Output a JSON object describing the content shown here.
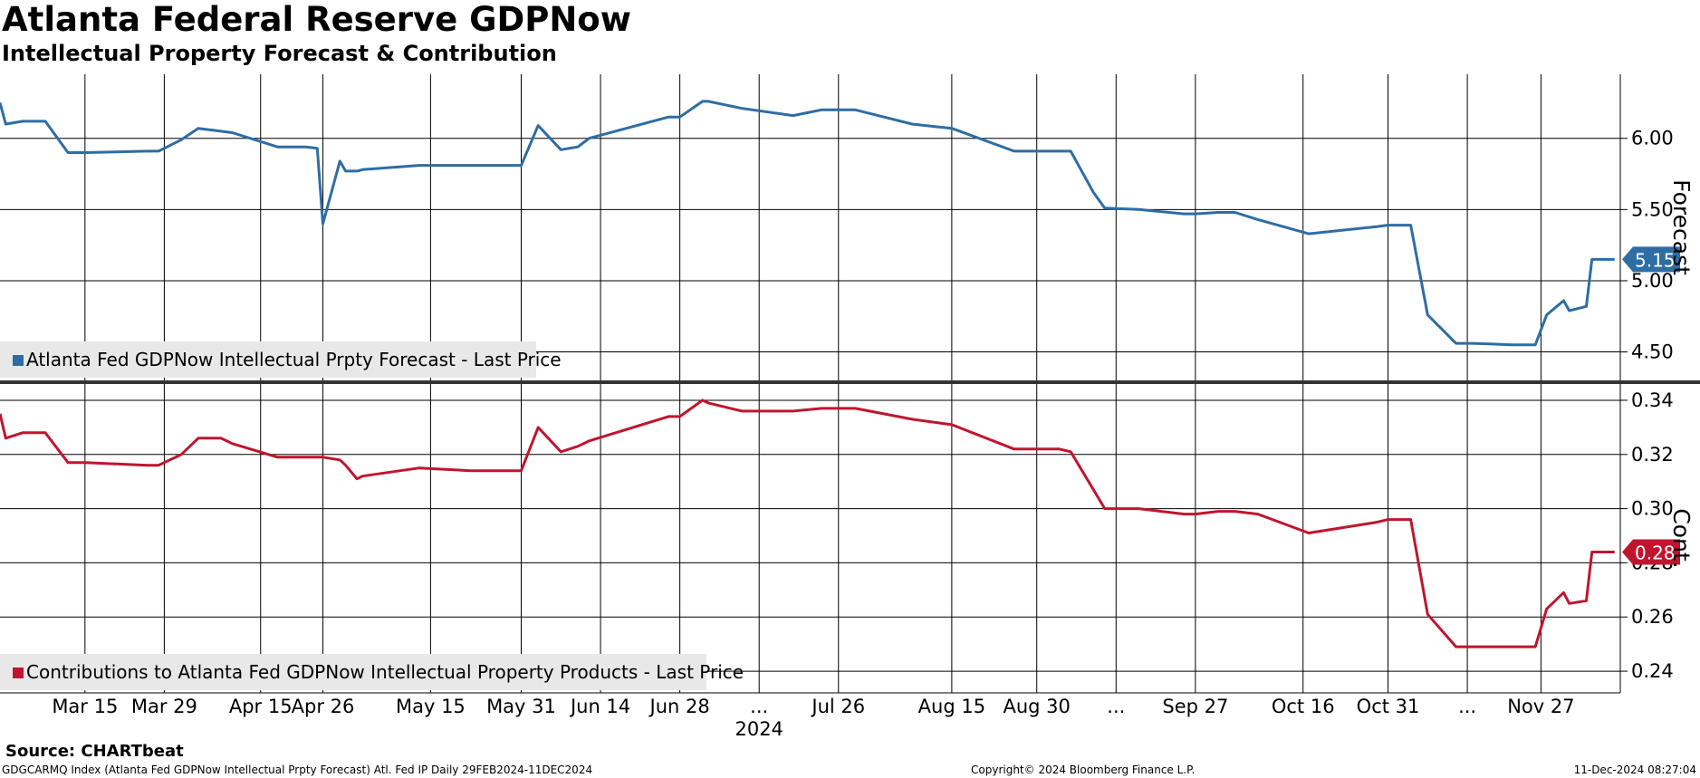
{
  "header": {
    "title": "Atlanta Federal Reserve GDPNow",
    "subtitle": "Intellectual Property Forecast & Contribution"
  },
  "footer": {
    "source": "Source: CHARTbeat",
    "index_line": "GDGCARMQ Index (Atlanta Fed GDPNow Intellectual Prpty Forecast) Atl. Fed IP  Daily 29FEB2024-11DEC2024",
    "copyright": "Copyright© 2024 Bloomberg Finance L.P.",
    "timestamp": "11-Dec-2024 08:27:04"
  },
  "colors": {
    "forecast": "#2e6da4",
    "contribution": "#c0152f",
    "grid": "#000000",
    "legend_bg": "#e8e8e8"
  },
  "chart_data": [
    {
      "type": "line",
      "panel": "top",
      "ylabel": "Forecast",
      "ylim": [
        4.3,
        6.45
      ],
      "y_ticks": [
        4.5,
        5.0,
        5.5,
        6.0
      ],
      "y_tick_labels": [
        "4.50",
        "5.00",
        "5.50",
        "6.00"
      ],
      "grid": true,
      "legend_position": "bottom-left",
      "last_value_label": "5.15",
      "series": [
        {
          "name": "Atlanta Fed GDPNow Intellectual Prpty Forecast - Last Price",
          "color": "#2e6da4",
          "x": [
            "2024-02-29",
            "2024-03-01",
            "2024-03-04",
            "2024-03-07",
            "2024-03-08",
            "2024-03-12",
            "2024-03-15",
            "2024-03-26",
            "2024-03-28",
            "2024-04-01",
            "2024-04-04",
            "2024-04-08",
            "2024-04-10",
            "2024-04-18",
            "2024-04-23",
            "2024-04-25",
            "2024-04-26",
            "2024-04-29",
            "2024-04-30",
            "2024-05-02",
            "2024-05-03",
            "2024-05-13",
            "2024-05-22",
            "2024-05-31",
            "2024-06-03",
            "2024-06-07",
            "2024-06-10",
            "2024-06-12",
            "2024-06-26",
            "2024-06-28",
            "2024-07-02",
            "2024-07-03",
            "2024-07-09",
            "2024-07-18",
            "2024-07-23",
            "2024-07-25",
            "2024-07-29",
            "2024-08-08",
            "2024-08-15",
            "2024-08-26",
            "2024-08-29",
            "2024-09-03",
            "2024-09-05",
            "2024-09-09",
            "2024-09-11",
            "2024-09-17",
            "2024-09-25",
            "2024-09-27",
            "2024-10-01",
            "2024-10-04",
            "2024-10-08",
            "2024-10-17",
            "2024-10-29",
            "2024-10-31",
            "2024-11-01",
            "2024-11-04",
            "2024-11-07",
            "2024-11-12",
            "2024-11-15",
            "2024-11-22",
            "2024-11-26",
            "2024-11-28",
            "2024-12-01",
            "2024-12-02",
            "2024-12-05",
            "2024-12-06",
            "2024-12-09",
            "2024-12-10"
          ],
          "y": [
            6.25,
            6.1,
            6.12,
            6.12,
            6.12,
            5.9,
            5.9,
            5.91,
            5.91,
            5.99,
            6.07,
            6.05,
            6.04,
            5.94,
            5.94,
            5.93,
            5.4,
            5.84,
            5.77,
            5.77,
            5.78,
            5.81,
            5.81,
            5.81,
            6.09,
            5.92,
            5.94,
            6.0,
            6.15,
            6.15,
            6.26,
            6.26,
            6.21,
            6.16,
            6.2,
            6.2,
            6.2,
            6.1,
            6.07,
            5.91,
            5.91,
            5.91,
            5.91,
            5.62,
            5.51,
            5.5,
            5.47,
            5.47,
            5.48,
            5.48,
            5.43,
            5.33,
            5.38,
            5.39,
            5.39,
            5.39,
            4.76,
            4.56,
            4.56,
            4.55,
            4.55,
            4.76,
            4.86,
            4.79,
            4.82,
            5.15,
            5.15,
            5.15
          ]
        }
      ]
    },
    {
      "type": "line",
      "panel": "bottom",
      "ylabel": "Cont.",
      "ylim": [
        0.232,
        0.346
      ],
      "y_ticks": [
        0.24,
        0.26,
        0.28,
        0.3,
        0.32,
        0.34
      ],
      "y_tick_labels": [
        "0.24",
        "0.26",
        "0.28",
        "0.30",
        "0.32",
        "0.34"
      ],
      "grid": true,
      "legend_position": "bottom-left",
      "last_value_label": "0.28",
      "x_tick_labels": [
        "Mar 15",
        "Mar 29",
        "Apr 15",
        "Apr 26",
        "May 15",
        "May 31",
        "Jun 14",
        "Jun 28",
        "...",
        "Jul 26",
        "Aug 15",
        "Aug 30",
        "...",
        "Sep 27",
        "Oct 16",
        "Oct 31",
        "...",
        "Nov 27"
      ],
      "x_year_label": "2024",
      "series": [
        {
          "name": "Contributions to Atlanta Fed GDPNow Intellectual Property Products - Last Price",
          "color": "#c0152f",
          "x": [
            "2024-02-29",
            "2024-03-01",
            "2024-03-04",
            "2024-03-07",
            "2024-03-08",
            "2024-03-12",
            "2024-03-15",
            "2024-03-26",
            "2024-03-28",
            "2024-04-01",
            "2024-04-04",
            "2024-04-08",
            "2024-04-10",
            "2024-04-18",
            "2024-04-23",
            "2024-04-25",
            "2024-04-26",
            "2024-04-29",
            "2024-04-30",
            "2024-05-02",
            "2024-05-03",
            "2024-05-13",
            "2024-05-22",
            "2024-05-31",
            "2024-06-03",
            "2024-06-07",
            "2024-06-10",
            "2024-06-12",
            "2024-06-26",
            "2024-06-28",
            "2024-07-02",
            "2024-07-03",
            "2024-07-09",
            "2024-07-18",
            "2024-07-23",
            "2024-07-25",
            "2024-07-29",
            "2024-08-08",
            "2024-08-15",
            "2024-08-26",
            "2024-08-29",
            "2024-09-03",
            "2024-09-05",
            "2024-09-09",
            "2024-09-11",
            "2024-09-17",
            "2024-09-25",
            "2024-09-27",
            "2024-10-01",
            "2024-10-04",
            "2024-10-08",
            "2024-10-17",
            "2024-10-29",
            "2024-10-31",
            "2024-11-01",
            "2024-11-04",
            "2024-11-07",
            "2024-11-12",
            "2024-11-15",
            "2024-11-22",
            "2024-11-26",
            "2024-11-28",
            "2024-12-01",
            "2024-12-02",
            "2024-12-05",
            "2024-12-06",
            "2024-12-09",
            "2024-12-10"
          ],
          "y": [
            0.335,
            0.326,
            0.328,
            0.328,
            0.328,
            0.317,
            0.317,
            0.316,
            0.316,
            0.32,
            0.326,
            0.326,
            0.324,
            0.319,
            0.319,
            0.319,
            0.319,
            0.318,
            0.316,
            0.311,
            0.312,
            0.315,
            0.314,
            0.314,
            0.33,
            0.321,
            0.323,
            0.325,
            0.334,
            0.334,
            0.34,
            0.339,
            0.336,
            0.336,
            0.337,
            0.337,
            0.337,
            0.333,
            0.331,
            0.322,
            0.322,
            0.322,
            0.321,
            0.307,
            0.3,
            0.3,
            0.298,
            0.298,
            0.299,
            0.299,
            0.298,
            0.291,
            0.295,
            0.296,
            0.296,
            0.296,
            0.261,
            0.249,
            0.249,
            0.249,
            0.249,
            0.263,
            0.269,
            0.265,
            0.266,
            0.284,
            0.284,
            0.284
          ]
        }
      ]
    }
  ]
}
